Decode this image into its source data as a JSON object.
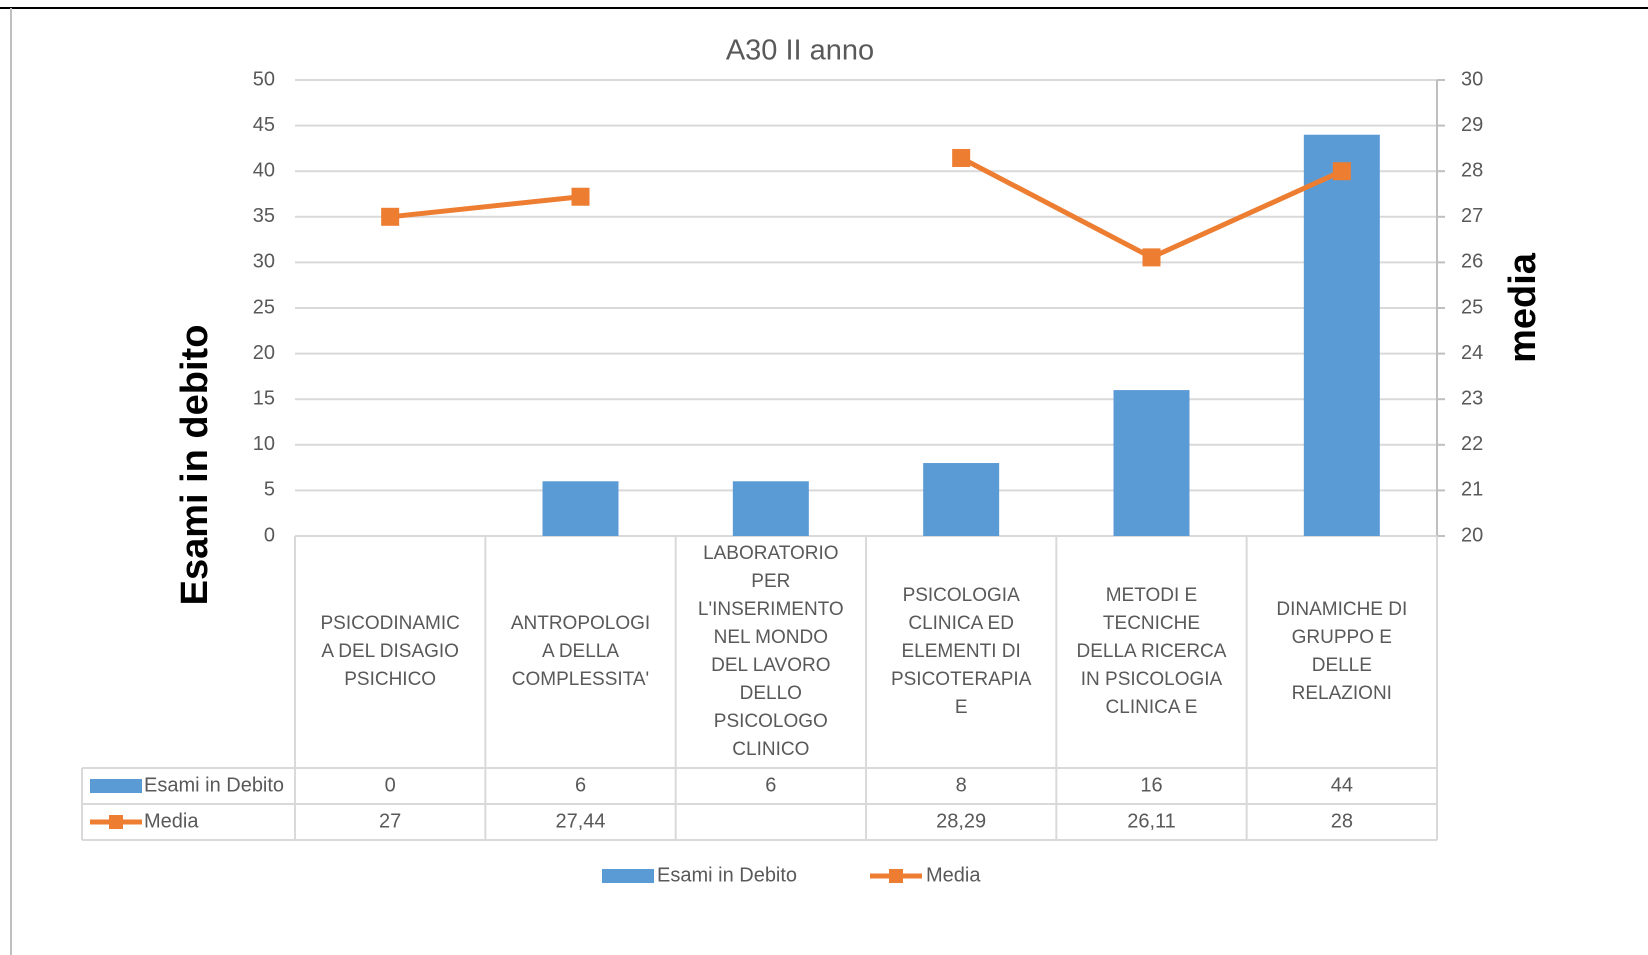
{
  "chart_data": {
    "type": "bar",
    "title": "A30 II anno",
    "y_label": "Esami in debito",
    "y2_label": "media",
    "categories": [
      "PSICODINAMICA DEL DISAGIO PSICHICO",
      "ANTROPOLOGIA DELLA COMPLESSITA'",
      "LABORATORIO PER L'INSERIMENTO NEL MONDO DEL LAVORO DELLO PSICOLOGO CLINICO",
      "PSICOLOGIA CLINICA ED ELEMENTI DI PSICOTERAPIA E",
      "METODI E TECNICHE DELLA RICERCA IN PSICOLOGIA CLINICA E",
      "DINAMICHE DI GRUPPO E DELLE RELAZIONI"
    ],
    "series": [
      {
        "name": "Esami in Debito",
        "type": "bar",
        "color": "#5b9bd5",
        "values": [
          0,
          6,
          6,
          8,
          16,
          44
        ]
      },
      {
        "name": "Media",
        "type": "line",
        "axis": "y2",
        "color": "#ed7d31",
        "values": [
          27,
          27.44,
          null,
          28.29,
          26.11,
          28
        ],
        "value_labels": [
          "27",
          "27,44",
          null,
          "28,29",
          "26,11",
          "28"
        ]
      }
    ],
    "ylim": [
      0,
      50
    ],
    "yticks": [
      0,
      5,
      10,
      15,
      20,
      25,
      30,
      35,
      40,
      45,
      50
    ],
    "y2lim": [
      20,
      30
    ],
    "y2ticks": [
      20,
      21,
      22,
      23,
      24,
      25,
      26,
      27,
      28,
      29,
      30
    ],
    "grid": true,
    "data_table": true,
    "legend": "bottom"
  }
}
